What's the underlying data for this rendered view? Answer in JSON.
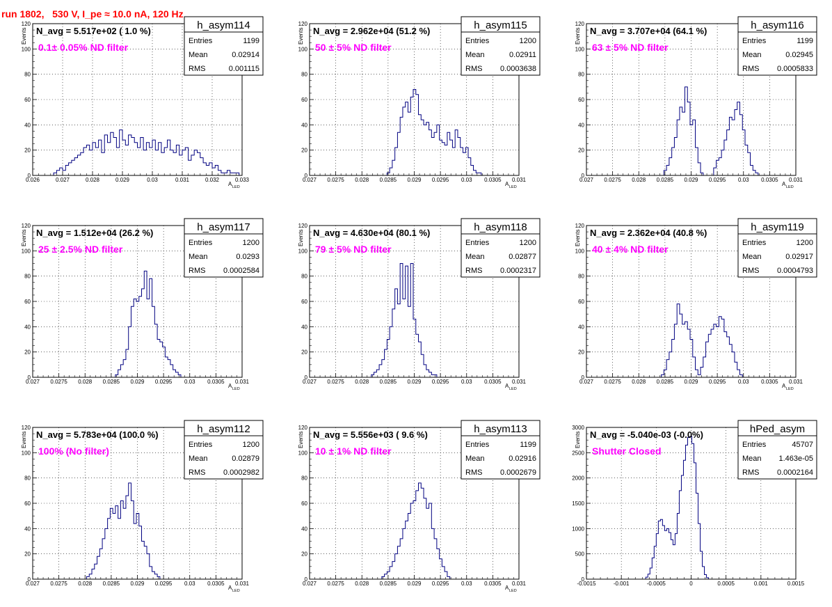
{
  "run_title": "run 1802,   530 V, I_pe ≈ 10.0 nA, 120 Hz",
  "stats_labels": [
    "Entries",
    "Mean",
    "RMS"
  ],
  "colors": {
    "hist_line": "#000080",
    "filter_label": "#ff00ff",
    "run_title": "#ff0000",
    "grid": "#000000"
  },
  "chart_data": [
    {
      "type": "bar",
      "hist_name": "h_asym114",
      "title": "N_avg = 5.517e+02 ( 1.0 %)",
      "annotation": "0.1± 0.05% ND filter",
      "entries": "1199",
      "mean": "0.02914",
      "rms": "0.001115",
      "xlabel": "A",
      "xlabel_sub": "LED",
      "ylabel": "Events",
      "xlim": [
        0.026,
        0.033
      ],
      "ylim": [
        0,
        120
      ],
      "xticks": [
        0.026,
        0.027,
        0.028,
        0.029,
        0.03,
        0.031,
        0.032,
        0.033
      ],
      "xtick_labels": [
        "0.026",
        "0.027",
        "0.028",
        "0.029",
        "0.03",
        "0.031",
        "0.032",
        "0.033"
      ],
      "yticks": [
        0,
        20,
        40,
        60,
        80,
        100,
        120
      ],
      "ytick_labels": [
        "0",
        "20",
        "40",
        "60",
        "80",
        "100",
        "120"
      ],
      "bin_start": 0.0267,
      "bin_width": 0.0001,
      "values": [
        2,
        4,
        6,
        4,
        8,
        10,
        12,
        14,
        16,
        18,
        22,
        24,
        20,
        26,
        22,
        28,
        18,
        32,
        26,
        34,
        30,
        22,
        36,
        28,
        24,
        32,
        30,
        26,
        22,
        30,
        20,
        26,
        22,
        28,
        20,
        26,
        18,
        22,
        28,
        20,
        18,
        24,
        16,
        20,
        22,
        12,
        16,
        20,
        18,
        14,
        10,
        8,
        10,
        6,
        8,
        4,
        2,
        2,
        4,
        2,
        2,
        2
      ]
    },
    {
      "type": "bar",
      "hist_name": "h_asym115",
      "title": "N_avg = 2.962e+04 (51.2 %)",
      "annotation": "50 ± 5% ND filter",
      "entries": "1200",
      "mean": "0.02911",
      "rms": "0.0003638",
      "xlabel": "A",
      "xlabel_sub": "LED",
      "ylabel": "Events",
      "xlim": [
        0.027,
        0.031
      ],
      "ylim": [
        0,
        120
      ],
      "xticks": [
        0.027,
        0.0275,
        0.028,
        0.0285,
        0.029,
        0.0295,
        0.03,
        0.0305,
        0.031
      ],
      "xtick_labels": [
        "0.027",
        "0.0275",
        "0.028",
        "0.0285",
        "0.029",
        "0.0295",
        "0.03",
        "0.0305",
        "0.031"
      ],
      "yticks": [
        0,
        20,
        40,
        60,
        80,
        100,
        120
      ],
      "ytick_labels": [
        "0",
        "20",
        "40",
        "60",
        "80",
        "100",
        "120"
      ],
      "bin_start": 0.02848,
      "bin_width": 5e-05,
      "values": [
        2,
        6,
        12,
        22,
        34,
        46,
        54,
        58,
        50,
        62,
        68,
        64,
        48,
        44,
        40,
        42,
        36,
        30,
        34,
        40,
        28,
        26,
        24,
        34,
        28,
        22,
        36,
        30,
        22,
        18,
        22,
        14,
        8,
        4,
        2,
        2
      ]
    },
    {
      "type": "bar",
      "hist_name": "h_asym116",
      "title": "N_avg = 3.707e+04 (64.1 %)",
      "annotation": "63 ± 5% ND filter",
      "entries": "1199",
      "mean": "0.02945",
      "rms": "0.0005833",
      "xlabel": "A",
      "xlabel_sub": "LED",
      "ylabel": "Events",
      "xlim": [
        0.027,
        0.031
      ],
      "ylim": [
        0,
        120
      ],
      "xticks": [
        0.027,
        0.0275,
        0.028,
        0.0285,
        0.029,
        0.0295,
        0.03,
        0.0305,
        0.031
      ],
      "xtick_labels": [
        "0.027",
        "0.0275",
        "0.028",
        "0.0285",
        "0.029",
        "0.0295",
        "0.03",
        "0.0305",
        "0.031"
      ],
      "yticks": [
        0,
        20,
        40,
        60,
        80,
        100,
        120
      ],
      "ytick_labels": [
        "0",
        "20",
        "40",
        "60",
        "80",
        "100",
        "120"
      ],
      "bin_start": 0.02848,
      "bin_width": 5e-05,
      "values": [
        4,
        8,
        14,
        22,
        30,
        44,
        54,
        50,
        70,
        58,
        40,
        44,
        22,
        10,
        2,
        0,
        0,
        0,
        0,
        6,
        12,
        14,
        20,
        28,
        36,
        46,
        44,
        52,
        58,
        48,
        36,
        24,
        18,
        8,
        4,
        2
      ]
    },
    {
      "type": "bar",
      "hist_name": "h_asym117",
      "title": "N_avg = 1.512e+04 (26.2 %)",
      "annotation": "25 ± 2.5% ND filter",
      "entries": "1200",
      "mean": "0.0293",
      "rms": "0.0002584",
      "xlabel": "A",
      "xlabel_sub": "LED",
      "ylabel": "Events",
      "xlim": [
        0.027,
        0.031
      ],
      "ylim": [
        0,
        120
      ],
      "xticks": [
        0.027,
        0.0275,
        0.028,
        0.0285,
        0.029,
        0.0295,
        0.03,
        0.0305,
        0.031
      ],
      "xtick_labels": [
        "0.027",
        "0.0275",
        "0.028",
        "0.0285",
        "0.029",
        "0.0295",
        "0.03",
        "0.0305",
        "0.031"
      ],
      "yticks": [
        0,
        20,
        40,
        60,
        80,
        100,
        120
      ],
      "ytick_labels": [
        "0",
        "20",
        "40",
        "60",
        "80",
        "100",
        "120"
      ],
      "bin_start": 0.02858,
      "bin_width": 5e-05,
      "values": [
        2,
        6,
        10,
        14,
        22,
        40,
        56,
        62,
        60,
        64,
        70,
        84,
        62,
        78,
        56,
        42,
        30,
        28,
        24,
        16,
        14,
        10,
        6,
        4,
        2
      ]
    },
    {
      "type": "bar",
      "hist_name": "h_asym118",
      "title": "N_avg = 4.630e+04 (80.1 %)",
      "annotation": "79 ± 5% ND filter",
      "entries": "1200",
      "mean": "0.02877",
      "rms": "0.0002317",
      "xlabel": "A",
      "xlabel_sub": "LED",
      "ylabel": "Events",
      "xlim": [
        0.027,
        0.031
      ],
      "ylim": [
        0,
        120
      ],
      "xticks": [
        0.027,
        0.0275,
        0.028,
        0.0285,
        0.029,
        0.0295,
        0.03,
        0.0305,
        0.031
      ],
      "xtick_labels": [
        "0.027",
        "0.0275",
        "0.028",
        "0.0285",
        "0.029",
        "0.0295",
        "0.03",
        "0.0305",
        "0.031"
      ],
      "yticks": [
        0,
        20,
        40,
        60,
        80,
        100,
        120
      ],
      "ytick_labels": [
        "0",
        "20",
        "40",
        "60",
        "80",
        "100",
        "120"
      ],
      "bin_start": 0.02818,
      "bin_width": 5e-05,
      "values": [
        2,
        4,
        6,
        10,
        14,
        22,
        30,
        40,
        54,
        70,
        58,
        90,
        62,
        88,
        56,
        90,
        46,
        34,
        28,
        18,
        10,
        6,
        4,
        2,
        2
      ]
    },
    {
      "type": "bar",
      "hist_name": "h_asym119",
      "title": "N_avg = 2.362e+04 (40.8 %)",
      "annotation": "40 ± 4% ND filter",
      "entries": "1200",
      "mean": "0.02917",
      "rms": "0.0004793",
      "xlabel": "A",
      "xlabel_sub": "LED",
      "ylabel": "Events",
      "xlim": [
        0.027,
        0.031
      ],
      "ylim": [
        0,
        120
      ],
      "xticks": [
        0.027,
        0.0275,
        0.028,
        0.0285,
        0.029,
        0.0295,
        0.03,
        0.0305,
        0.031
      ],
      "xtick_labels": [
        "0.027",
        "0.0275",
        "0.028",
        "0.0285",
        "0.029",
        "0.0295",
        "0.03",
        "0.0305",
        "0.031"
      ],
      "yticks": [
        0,
        20,
        40,
        60,
        80,
        100,
        120
      ],
      "ytick_labels": [
        "0",
        "20",
        "40",
        "60",
        "80",
        "100",
        "120"
      ],
      "bin_start": 0.02843,
      "bin_width": 5e-05,
      "values": [
        2,
        6,
        14,
        20,
        30,
        42,
        58,
        50,
        42,
        44,
        38,
        30,
        16,
        6,
        2,
        8,
        16,
        28,
        34,
        38,
        42,
        40,
        48,
        46,
        36,
        32,
        26,
        20,
        12,
        6,
        2
      ]
    },
    {
      "type": "bar",
      "hist_name": "h_asym112",
      "title": "N_avg = 5.783e+04 (100.0 %)",
      "annotation": "100% (No filter)",
      "entries": "1200",
      "mean": "0.02879",
      "rms": "0.0002982",
      "xlabel": "A",
      "xlabel_sub": "LED",
      "ylabel": "Events",
      "xlim": [
        0.027,
        0.031
      ],
      "ylim": [
        0,
        120
      ],
      "xticks": [
        0.027,
        0.0275,
        0.028,
        0.0285,
        0.029,
        0.0295,
        0.03,
        0.0305,
        0.031
      ],
      "xtick_labels": [
        "0.027",
        "0.0275",
        "0.028",
        "0.0285",
        "0.029",
        "0.0295",
        "0.03",
        "0.0305",
        "0.031"
      ],
      "yticks": [
        0,
        20,
        40,
        60,
        80,
        100,
        120
      ],
      "ytick_labels": [
        "0",
        "20",
        "40",
        "60",
        "80",
        "100",
        "120"
      ],
      "bin_start": 0.02803,
      "bin_width": 5e-05,
      "values": [
        2,
        4,
        8,
        12,
        18,
        24,
        32,
        40,
        48,
        56,
        52,
        58,
        48,
        62,
        56,
        66,
        76,
        62,
        44,
        52,
        42,
        30,
        26,
        20,
        10,
        6,
        4,
        2
      ]
    },
    {
      "type": "bar",
      "hist_name": "h_asym113",
      "title": "N_avg = 5.556e+03 ( 9.6 %)",
      "annotation": "10 ± 1% ND filter",
      "entries": "1199",
      "mean": "0.02916",
      "rms": "0.0002679",
      "xlabel": "A",
      "xlabel_sub": "LED",
      "ylabel": "Events",
      "xlim": [
        0.027,
        0.031
      ],
      "ylim": [
        0,
        120
      ],
      "xticks": [
        0.027,
        0.0275,
        0.028,
        0.0285,
        0.029,
        0.0295,
        0.03,
        0.0305,
        0.031
      ],
      "xtick_labels": [
        "0.027",
        "0.0275",
        "0.028",
        "0.0285",
        "0.029",
        "0.0295",
        "0.03",
        "0.0305",
        "0.031"
      ],
      "yticks": [
        0,
        20,
        40,
        60,
        80,
        100,
        120
      ],
      "ytick_labels": [
        "0",
        "20",
        "40",
        "60",
        "80",
        "100",
        "120"
      ],
      "bin_start": 0.02838,
      "bin_width": 5e-05,
      "values": [
        2,
        4,
        6,
        10,
        14,
        20,
        26,
        32,
        40,
        46,
        52,
        60,
        62,
        70,
        76,
        72,
        64,
        56,
        60,
        40,
        32,
        24,
        16,
        10,
        6,
        2
      ]
    },
    {
      "type": "bar",
      "hist_name": "hPed_asym",
      "title": "N_avg = -5.040e-03 (-0.0%)",
      "annotation": "Shutter Closed",
      "entries": "45707",
      "mean": "1.463e-05",
      "rms": "0.0002164",
      "xlabel": "",
      "xlabel_sub": "",
      "ylabel": "Events",
      "xlim": [
        -0.0015,
        0.0015
      ],
      "ylim": [
        0,
        3000
      ],
      "xticks": [
        -0.0015,
        -0.001,
        -0.0005,
        0,
        0.0005,
        0.001,
        0.0015
      ],
      "xtick_labels": [
        "-0.0015",
        "-0.001",
        "-0.0005",
        "0",
        "0.0005",
        "0.001",
        "0.0015"
      ],
      "yticks": [
        0,
        500,
        1000,
        1500,
        2000,
        2500,
        3000
      ],
      "ytick_labels": [
        "0",
        "500",
        "1000",
        "1500",
        "2000",
        "2500",
        "3000"
      ],
      "bin_start": -0.00065,
      "bin_width": 3e-05,
      "values": [
        40,
        100,
        220,
        420,
        650,
        900,
        1150,
        1180,
        1060,
        960,
        1000,
        920,
        780,
        680,
        900,
        1300,
        1750,
        2050,
        2350,
        2650,
        2800,
        2820,
        2680,
        2300,
        1700,
        1100,
        550,
        250,
        90,
        30
      ]
    }
  ]
}
